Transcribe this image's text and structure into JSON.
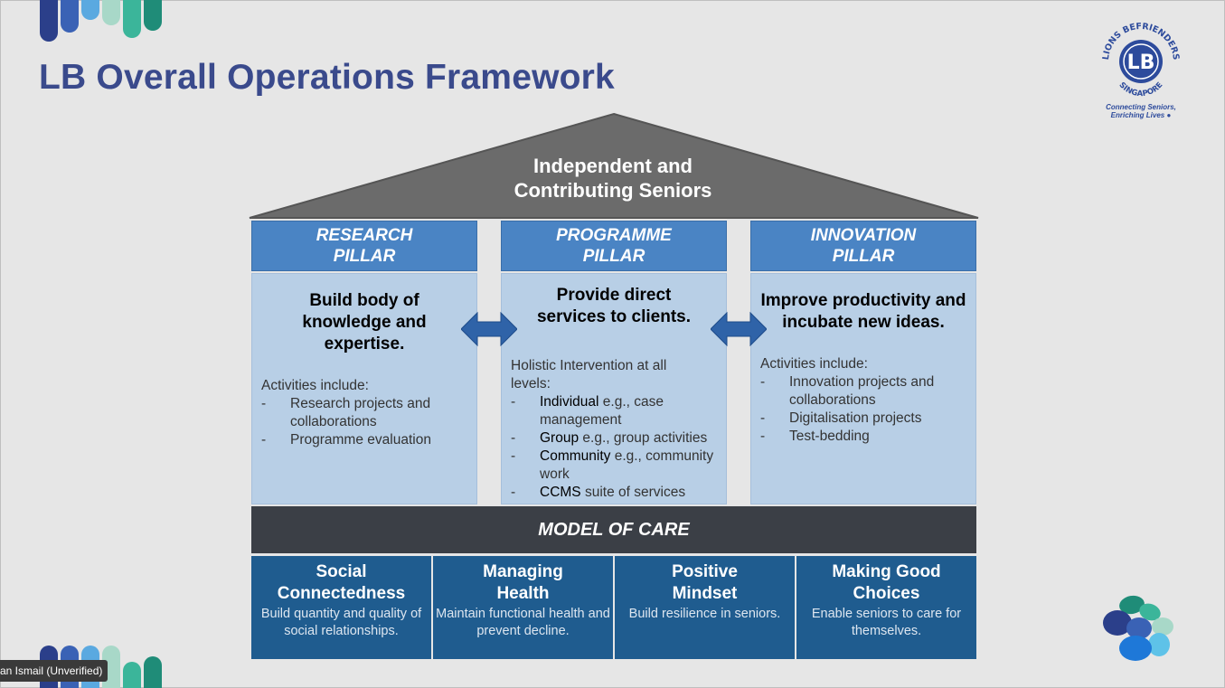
{
  "slide": {
    "title": "LB Overall Operations Framework"
  },
  "logo": {
    "ring_text_top": "LIONS BEFRIENDERS",
    "ring_text_bottom": "SINGAPORE",
    "monogram": "LB",
    "tagline_1": "Connecting Seniors,",
    "tagline_2": "Enriching Lives"
  },
  "roof": {
    "line1": "Independent and",
    "line2": "Contributing Seniors"
  },
  "pillars": [
    {
      "head1": "RESEARCH",
      "head2": "PILLAR",
      "title": "Build body of knowledge and expertise.",
      "intro": "Activities include:",
      "items": [
        {
          "bold": "",
          "text": "Research projects and collaborations"
        },
        {
          "bold": "",
          "text": "Programme evaluation"
        }
      ]
    },
    {
      "head1": "PROGRAMME",
      "head2": "PILLAR",
      "title": "Provide direct services to clients.",
      "intro": "Holistic Intervention at all levels:",
      "items": [
        {
          "bold": "Individual",
          "text": " e.g., case management"
        },
        {
          "bold": "Group",
          "text": " e.g., group activities"
        },
        {
          "bold": "Community",
          "text": " e.g., community work"
        },
        {
          "bold": "CCMS",
          "text": " suite of services"
        }
      ]
    },
    {
      "head1": "INNOVATION",
      "head2": "PILLAR",
      "title": "Improve productivity and incubate new ideas.",
      "intro": "Activities include:",
      "items": [
        {
          "bold": "",
          "text": "Innovation projects and collaborations"
        },
        {
          "bold": "",
          "text": "Digitalisation projects"
        },
        {
          "bold": "",
          "text": "Test-bedding"
        }
      ]
    }
  ],
  "model_of_care": {
    "label": "MODEL OF CARE",
    "cells": [
      {
        "t1": "Social",
        "t2": "Connectedness",
        "desc": "Build quantity and quality of social relationships."
      },
      {
        "t1": "Managing",
        "t2": "Health",
        "desc": "Maintain functional health and prevent decline."
      },
      {
        "t1": "Positive",
        "t2": "Mindset",
        "desc": "Build resilience in seniors."
      },
      {
        "t1": "Making Good",
        "t2": "Choices",
        "desc": "Enable seniors to care for themselves."
      }
    ]
  },
  "participant": {
    "name": "an Ismail (Unverified)"
  },
  "colors": {
    "title": "#3a4a8c",
    "pillar_head": "#4a84c4",
    "pillar_body": "#b8cfe6",
    "roof": "#6b6b6b",
    "moc_bar": "#3b3f46",
    "moc_cell": "#1f5c8f",
    "arrow": "#2f63a8"
  }
}
